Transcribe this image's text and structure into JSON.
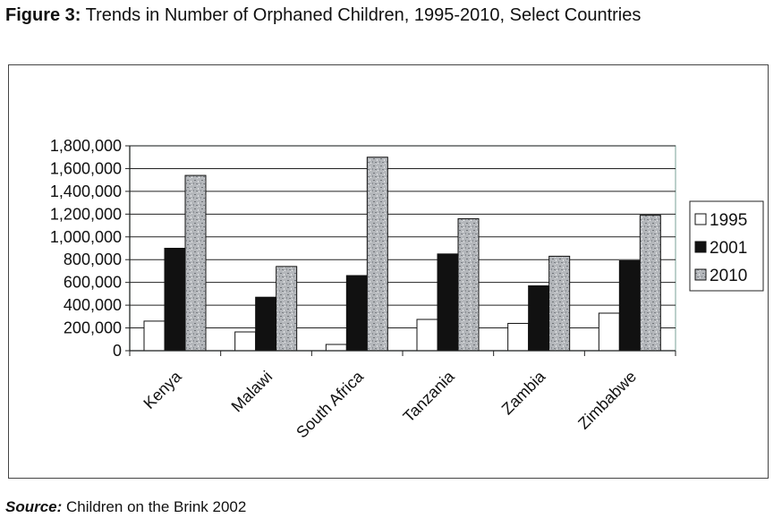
{
  "figure": {
    "title_prefix": "Figure 3:",
    "title_text": "Trends in Number of Orphaned Children, 1995-2010, Select Countries",
    "source_prefix": "Source:",
    "source_text": "Children on the Brink 2002"
  },
  "chart_data": {
    "type": "bar",
    "title": "",
    "xlabel": "",
    "ylabel": "",
    "categories": [
      "Kenya",
      "Malawi",
      "South Africa",
      "Tanzania",
      "Zambia",
      "Zimbabwe"
    ],
    "series": [
      {
        "name": "1995",
        "values": [
          260000,
          165000,
          55000,
          275000,
          240000,
          330000
        ],
        "color": "#ffffff"
      },
      {
        "name": "2001",
        "values": [
          900000,
          470000,
          660000,
          850000,
          570000,
          790000
        ],
        "color": "#111111"
      },
      {
        "name": "2010",
        "values": [
          1540000,
          740000,
          1700000,
          1160000,
          830000,
          1190000
        ],
        "color": "#a9acb0"
      }
    ],
    "ylim": [
      0,
      1800000
    ],
    "yticks": [
      "0",
      "200,000",
      "400,000",
      "600,000",
      "800,000",
      "1,000,000",
      "1,200,000",
      "1,400,000",
      "1,600,000",
      "1,800,000"
    ],
    "grid": true,
    "legend_position": "right"
  }
}
